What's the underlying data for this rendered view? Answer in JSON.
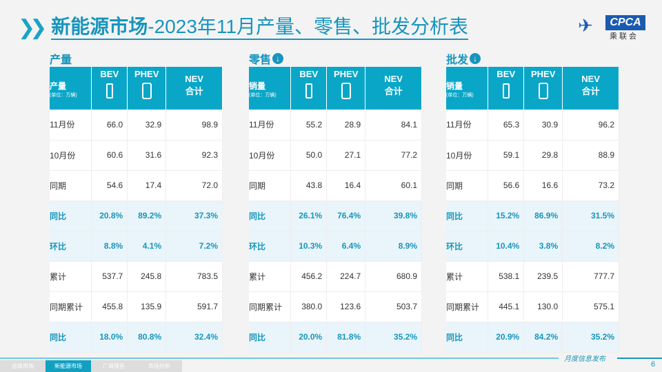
{
  "title": {
    "bold": "新能源市场",
    "rest": "-2023年11月产量、零售、批发分析表"
  },
  "logo": {
    "text": "CPCA",
    "sub": "乘联会"
  },
  "columns": {
    "bev": "BEV",
    "phev": "PHEV",
    "nev": "NEV",
    "nev_sub": "合计",
    "unit": "(单位：万辆)"
  },
  "sections": [
    {
      "title": "产量",
      "has_icon": false,
      "header_label": "产量",
      "rows": [
        {
          "label": "11月份",
          "bev": "66.0",
          "phev": "32.9",
          "nev": "98.9",
          "hl": false
        },
        {
          "label": "10月份",
          "bev": "60.6",
          "phev": "31.6",
          "nev": "92.3",
          "hl": false
        },
        {
          "label": "同期",
          "bev": "54.6",
          "phev": "17.4",
          "nev": "72.0",
          "hl": false
        },
        {
          "label": "同比",
          "bev": "20.8%",
          "phev": "89.2%",
          "nev": "37.3%",
          "hl": true
        },
        {
          "label": "环比",
          "bev": "8.8%",
          "phev": "4.1%",
          "nev": "7.2%",
          "hl": true
        },
        {
          "label": "累计",
          "bev": "537.7",
          "phev": "245.8",
          "nev": "783.5",
          "hl": false
        },
        {
          "label": "同期累计",
          "bev": "455.8",
          "phev": "135.9",
          "nev": "591.7",
          "hl": false
        },
        {
          "label": "同比",
          "bev": "18.0%",
          "phev": "80.8%",
          "nev": "32.4%",
          "hl": true
        }
      ]
    },
    {
      "title": "零售",
      "has_icon": true,
      "header_label": "销量",
      "rows": [
        {
          "label": "11月份",
          "bev": "55.2",
          "phev": "28.9",
          "nev": "84.1",
          "hl": false
        },
        {
          "label": "10月份",
          "bev": "50.0",
          "phev": "27.1",
          "nev": "77.2",
          "hl": false
        },
        {
          "label": "同期",
          "bev": "43.8",
          "phev": "16.4",
          "nev": "60.1",
          "hl": false
        },
        {
          "label": "同比",
          "bev": "26.1%",
          "phev": "76.4%",
          "nev": "39.8%",
          "hl": true
        },
        {
          "label": "环比",
          "bev": "10.3%",
          "phev": "6.4%",
          "nev": "8.9%",
          "hl": true
        },
        {
          "label": "累计",
          "bev": "456.2",
          "phev": "224.7",
          "nev": "680.9",
          "hl": false
        },
        {
          "label": "同期累计",
          "bev": "380.0",
          "phev": "123.6",
          "nev": "503.7",
          "hl": false
        },
        {
          "label": "同比",
          "bev": "20.0%",
          "phev": "81.8%",
          "nev": "35.2%",
          "hl": true
        }
      ]
    },
    {
      "title": "批发",
      "has_icon": true,
      "header_label": "销量",
      "rows": [
        {
          "label": "11月份",
          "bev": "65.3",
          "phev": "30.9",
          "nev": "96.2",
          "hl": false
        },
        {
          "label": "10月份",
          "bev": "59.1",
          "phev": "29.8",
          "nev": "88.9",
          "hl": false
        },
        {
          "label": "同期",
          "bev": "56.6",
          "phev": "16.6",
          "nev": "73.2",
          "hl": false
        },
        {
          "label": "同比",
          "bev": "15.2%",
          "phev": "86.9%",
          "nev": "31.5%",
          "hl": true
        },
        {
          "label": "环比",
          "bev": "10.4%",
          "phev": "3.8%",
          "nev": "8.2%",
          "hl": true
        },
        {
          "label": "累计",
          "bev": "538.1",
          "phev": "239.5",
          "nev": "777.7",
          "hl": false
        },
        {
          "label": "同期累计",
          "bev": "445.1",
          "phev": "130.0",
          "nev": "575.1",
          "hl": false
        },
        {
          "label": "同比",
          "bev": "20.9%",
          "phev": "84.2%",
          "nev": "35.2%",
          "hl": true
        }
      ]
    }
  ],
  "footer": {
    "tabs": [
      "总体市场",
      "新能源市场",
      "厂商排名",
      "市场分析"
    ],
    "active": 1,
    "text": "月度信息发布",
    "page": "6"
  }
}
